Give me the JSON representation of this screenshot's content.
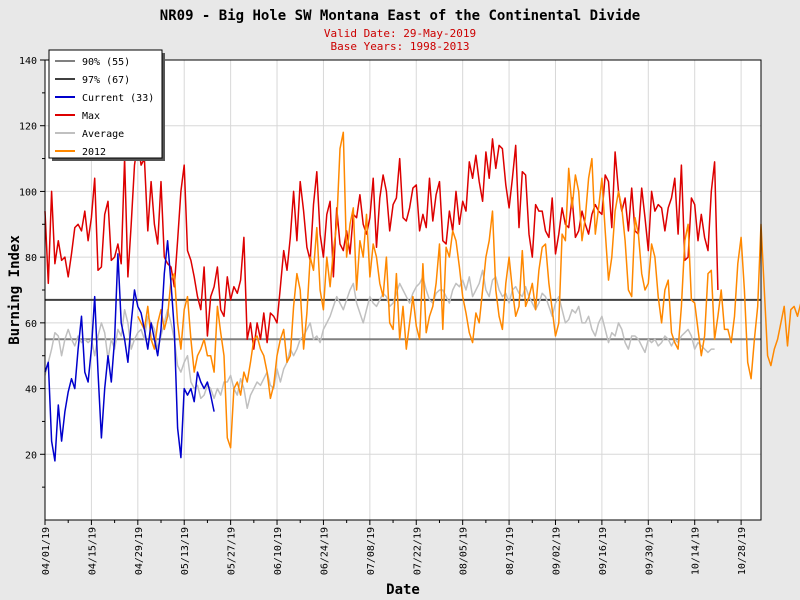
{
  "chart_data": {
    "type": "line",
    "title": "NR09 - Big Hole SW Montana East of the Continental Divide",
    "subtitle_lines": [
      "Valid Date: 29-May-2019",
      "Base Years: 1998-2013"
    ],
    "xlabel": "Date",
    "ylabel": "Burning Index",
    "ylim": [
      0,
      140
    ],
    "yticks": [
      20,
      40,
      60,
      80,
      100,
      120,
      140
    ],
    "x_start": "04/01/19",
    "x_end": "11/03/19",
    "xticks": [
      "04/01/19",
      "04/15/19",
      "04/29/19",
      "05/13/19",
      "05/27/19",
      "06/10/19",
      "06/24/19",
      "07/08/19",
      "07/22/19",
      "08/05/19",
      "08/19/19",
      "09/02/19",
      "09/16/19",
      "09/30/19",
      "10/14/19",
      "10/28/19"
    ],
    "grid": true,
    "legend_position": "top-left",
    "hlines": [
      {
        "name": "90% (55)",
        "value": 55,
        "color": "#808080"
      },
      {
        "name": "97% (67)",
        "value": 67,
        "color": "#404040"
      }
    ],
    "series": [
      {
        "name": "Current (33)",
        "color": "#0000cc",
        "start": "04/01/19",
        "values": [
          45,
          48,
          24,
          18,
          35,
          24,
          33,
          39,
          43,
          40,
          52,
          62,
          45,
          42,
          52,
          68,
          45,
          25,
          40,
          50,
          42,
          55,
          81,
          60,
          55,
          48,
          60,
          70,
          65,
          63,
          58,
          52,
          60,
          55,
          50,
          58,
          75,
          85,
          72,
          58,
          28,
          19,
          40,
          38,
          40,
          36,
          45,
          42,
          40,
          42,
          38,
          33
        ]
      },
      {
        "name": "Max",
        "color": "#dd0000",
        "start": "04/01/19",
        "values": [
          94,
          72,
          100,
          78,
          85,
          79,
          80,
          74,
          81,
          89,
          90,
          88,
          94,
          85,
          92,
          104,
          76,
          77,
          93,
          97,
          79,
          80,
          84,
          78,
          110,
          74,
          90,
          108,
          115,
          108,
          110,
          88,
          103,
          90,
          84,
          103,
          80,
          78,
          77,
          71,
          85,
          100,
          108,
          82,
          79,
          74,
          68,
          64,
          77,
          56,
          68,
          71,
          77,
          64,
          62,
          74,
          67,
          71,
          69,
          73,
          86,
          55,
          60,
          52,
          60,
          55,
          63,
          54,
          63,
          62,
          60,
          71,
          82,
          76,
          86,
          100,
          85,
          103,
          94,
          83,
          79,
          96,
          106,
          87,
          80,
          93,
          97,
          74,
          95,
          84,
          82,
          88,
          81,
          93,
          92,
          99,
          90,
          87,
          92,
          104,
          83,
          98,
          105,
          100,
          88,
          96,
          98,
          110,
          92,
          91,
          95,
          101,
          102,
          88,
          93,
          89,
          104,
          91,
          99,
          103,
          85,
          84,
          94,
          88,
          100,
          90,
          97,
          94,
          109,
          104,
          111,
          103,
          97,
          112,
          104,
          116,
          107,
          114,
          113,
          102,
          95,
          104,
          114,
          89,
          106,
          105,
          87,
          80,
          96,
          94,
          94,
          88,
          86,
          98,
          81,
          87,
          95,
          90,
          89,
          98,
          86,
          88,
          94,
          90,
          87,
          93,
          96,
          94,
          93,
          105,
          103,
          89,
          112,
          100,
          94,
          98,
          88,
          101,
          88,
          87,
          101,
          92,
          82,
          100,
          94,
          96,
          95,
          88,
          95,
          98,
          104,
          87,
          108,
          79,
          80,
          98,
          96,
          85,
          93,
          86,
          82,
          100,
          109,
          70
        ]
      },
      {
        "name": "Average",
        "color": "#c0c0c0",
        "start": "04/01/19",
        "values": [
          44,
          48,
          52,
          57,
          56,
          50,
          55,
          58,
          55,
          53,
          56,
          54,
          55,
          54,
          55,
          50,
          56,
          60,
          57,
          49,
          55,
          52,
          58,
          56,
          64,
          60,
          52,
          55,
          57,
          58,
          55,
          62,
          60,
          58,
          52,
          56,
          60,
          64,
          60,
          55,
          47,
          45,
          48,
          50,
          42,
          40,
          41,
          37,
          38,
          41,
          40,
          37,
          40,
          38,
          42,
          42,
          44,
          40,
          38,
          43,
          40,
          34,
          38,
          40,
          42,
          41,
          43,
          45,
          41,
          40,
          46,
          42,
          46,
          48,
          52,
          50,
          52,
          55,
          56,
          58,
          60,
          55,
          56,
          54,
          58,
          60,
          62,
          65,
          68,
          66,
          64,
          67,
          70,
          72,
          66,
          63,
          60,
          64,
          68,
          66,
          65,
          67,
          69,
          68,
          65,
          66,
          69,
          72,
          70,
          68,
          66,
          69,
          71,
          72,
          74,
          70,
          67,
          66,
          69,
          70,
          70,
          68,
          66,
          70,
          72,
          71,
          73,
          70,
          74,
          68,
          70,
          72,
          76,
          70,
          68,
          73,
          74,
          70,
          68,
          69,
          66,
          70,
          71,
          69,
          68,
          71,
          68,
          66,
          64,
          66,
          69,
          68,
          65,
          62,
          66,
          68,
          64,
          60,
          61,
          64,
          63,
          65,
          60,
          60,
          62,
          58,
          56,
          60,
          62,
          58,
          54,
          57,
          56,
          60,
          58,
          54,
          52,
          56,
          56,
          55,
          53,
          51,
          55,
          54,
          55,
          53,
          54,
          56,
          55,
          53,
          55,
          54,
          56,
          57,
          58,
          56,
          52,
          54,
          53,
          52,
          51,
          52,
          52
        ]
      },
      {
        "name": "2012",
        "color": "#ff8800",
        "start": "04/29/19",
        "values": [
          62,
          60,
          58,
          65,
          55,
          52,
          60,
          64,
          58,
          62,
          73,
          75,
          60,
          52,
          64,
          68,
          55,
          45,
          50,
          52,
          55,
          50,
          50,
          45,
          65,
          57,
          50,
          25,
          22,
          40,
          42,
          38,
          45,
          42,
          48,
          55,
          56,
          52,
          50,
          45,
          37,
          41,
          50,
          55,
          58,
          48,
          50,
          65,
          75,
          70,
          52,
          63,
          80,
          76,
          89,
          70,
          64,
          80,
          71,
          82,
          90,
          113,
          118,
          80,
          90,
          95,
          70,
          85,
          80,
          93,
          74,
          84,
          80,
          72,
          68,
          80,
          60,
          58,
          75,
          55,
          65,
          52,
          60,
          68,
          59,
          55,
          78,
          57,
          62,
          65,
          72,
          84,
          58,
          83,
          80,
          88,
          85,
          77,
          68,
          63,
          57,
          54,
          63,
          60,
          70,
          80,
          85,
          94,
          70,
          62,
          58,
          72,
          80,
          70,
          62,
          65,
          82,
          65,
          68,
          72,
          64,
          76,
          83,
          84,
          72,
          64,
          56,
          60,
          87,
          85,
          107,
          95,
          105,
          100,
          85,
          92,
          104,
          110,
          87,
          95,
          104,
          88,
          73,
          80,
          94,
          100,
          95,
          85,
          70,
          68,
          92,
          87,
          75,
          70,
          72,
          84,
          80,
          68,
          60,
          70,
          73,
          57,
          54,
          52,
          65,
          85,
          90,
          67,
          66,
          58,
          50,
          56,
          75,
          76,
          55,
          62,
          70,
          58,
          58,
          54,
          62,
          78,
          86,
          70,
          48,
          43,
          55,
          65,
          90,
          70,
          50,
          47,
          52,
          55,
          60,
          65,
          53,
          64,
          65,
          62,
          66
        ]
      }
    ]
  }
}
